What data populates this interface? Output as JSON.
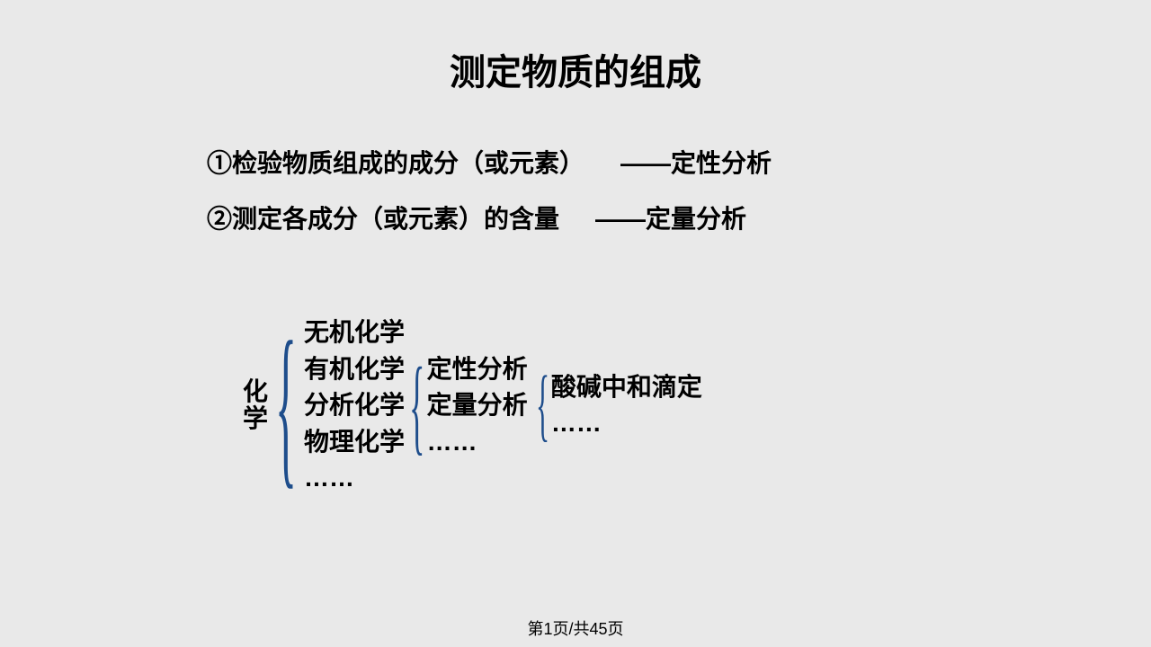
{
  "title": "测定物质的组成",
  "points": {
    "item1_left": "①检验物质组成的成分（或元素）",
    "item1_right": "——定性分析",
    "item2_left": "②测定各成分（或元素）的含量",
    "item2_right": "——定量分析"
  },
  "hierarchy": {
    "root": "化学",
    "level1": [
      "无机化学",
      "有机化学",
      "分析化学",
      "物理化学",
      "……"
    ],
    "level2": [
      "定性分析",
      "定量分析",
      "……"
    ],
    "level3": [
      "酸碱中和滴定",
      "……"
    ]
  },
  "pageNum": "第1页/共45页",
  "colors": {
    "background": "#e9e9e9",
    "text": "#000000",
    "brace": "#1e4d8b"
  }
}
